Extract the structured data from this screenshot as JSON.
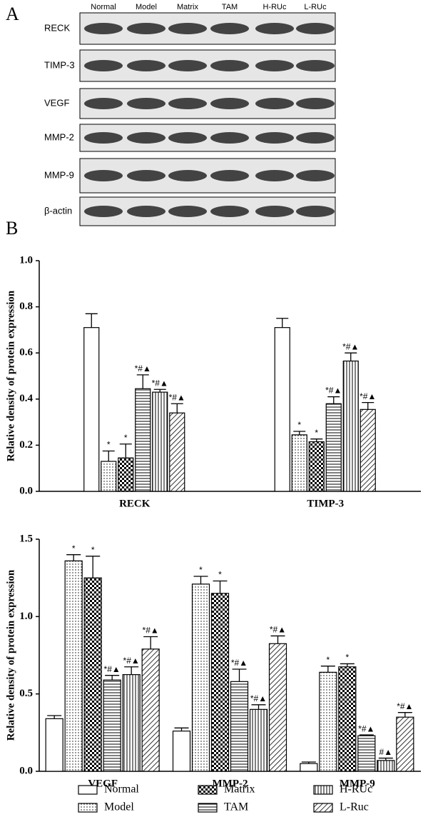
{
  "panels": {
    "a": "A",
    "b": "B"
  },
  "blot": {
    "columns": [
      "Normal",
      "Model",
      "Matrix",
      "TAM",
      "H-RUc",
      "L-RUc"
    ],
    "rows": [
      "RECK",
      "TIMP-3",
      "VEGF",
      "MMP-2",
      "MMP-9",
      "β-actin"
    ]
  },
  "chart_data": [
    {
      "type": "bar",
      "ylabel": "Relative density of protein expression",
      "categories": [
        "RECK",
        "TIMP-3"
      ],
      "series": [
        {
          "name": "Normal",
          "pattern": "white",
          "values": [
            0.71,
            0.71
          ],
          "errors": [
            0.06,
            0.04
          ]
        },
        {
          "name": "Model",
          "pattern": "dots",
          "values": [
            0.13,
            0.245
          ],
          "errors": [
            0.045,
            0.015
          ],
          "labels": [
            "*",
            "*"
          ]
        },
        {
          "name": "Matrix",
          "pattern": "checker",
          "values": [
            0.145,
            0.215
          ],
          "errors": [
            0.06,
            0.012
          ],
          "labels": [
            "*",
            "*"
          ]
        },
        {
          "name": "TAM",
          "pattern": "hlines",
          "values": [
            0.445,
            0.38
          ],
          "errors": [
            0.06,
            0.03
          ],
          "labels": [
            "*#▲",
            "*#▲"
          ]
        },
        {
          "name": "H-RUc",
          "pattern": "vlines",
          "values": [
            0.43,
            0.565
          ],
          "errors": [
            0.012,
            0.035
          ],
          "labels": [
            "*#▲",
            "*#▲"
          ]
        },
        {
          "name": "L-Ruc",
          "pattern": "diag",
          "values": [
            0.34,
            0.355
          ],
          "errors": [
            0.04,
            0.03
          ],
          "labels": [
            "*#▲",
            "*#▲"
          ]
        }
      ],
      "ylim": [
        0,
        1.0
      ],
      "yticks": [
        {
          "value": 0,
          "label": "0.0"
        },
        {
          "value": 0.2,
          "label": "0.2"
        },
        {
          "value": 0.4,
          "label": "0.4"
        },
        {
          "value": 0.6,
          "label": "0.6"
        },
        {
          "value": 0.8,
          "label": "0.8"
        },
        {
          "value": 1.0,
          "label": "1.0"
        }
      ]
    },
    {
      "type": "bar",
      "ylabel": "Relative density of protein expression",
      "categories": [
        "VEGF",
        "MMP-2",
        "MMP-9"
      ],
      "series": [
        {
          "name": "Normal",
          "pattern": "white",
          "values": [
            0.34,
            0.26,
            0.05
          ],
          "errors": [
            0.02,
            0.02,
            0.01
          ]
        },
        {
          "name": "Model",
          "pattern": "dots",
          "values": [
            1.36,
            1.21,
            0.64
          ],
          "errors": [
            0.04,
            0.05,
            0.04
          ],
          "labels": [
            "*",
            "*",
            "*"
          ]
        },
        {
          "name": "Matrix",
          "pattern": "checker",
          "values": [
            1.25,
            1.15,
            0.675
          ],
          "errors": [
            0.14,
            0.08,
            0.02
          ],
          "labels": [
            "*",
            "*",
            "*"
          ]
        },
        {
          "name": "TAM",
          "pattern": "hlines",
          "values": [
            0.59,
            0.58,
            0.23
          ],
          "errors": [
            0.03,
            0.08,
            0.005
          ],
          "labels": [
            "*#▲",
            "*#▲",
            "*#▲"
          ]
        },
        {
          "name": "H-RUc",
          "pattern": "vlines",
          "values": [
            0.625,
            0.4,
            0.07
          ],
          "errors": [
            0.05,
            0.03,
            0.015
          ],
          "labels": [
            "*#▲",
            "*#▲",
            "#▲"
          ]
        },
        {
          "name": "L-Ruc",
          "pattern": "diag",
          "values": [
            0.79,
            0.825,
            0.35
          ],
          "errors": [
            0.08,
            0.05,
            0.03
          ],
          "labels": [
            "*#▲",
            "*#▲",
            "*#▲"
          ]
        }
      ],
      "ylim": [
        0,
        1.5
      ],
      "yticks": [
        {
          "value": 0,
          "label": "0.0"
        },
        {
          "value": 0.5,
          "label": "0.5"
        },
        {
          "value": 1.0,
          "label": "1.0"
        },
        {
          "value": 1.5,
          "label": "1.5"
        }
      ],
      "legend": "bottom"
    }
  ]
}
